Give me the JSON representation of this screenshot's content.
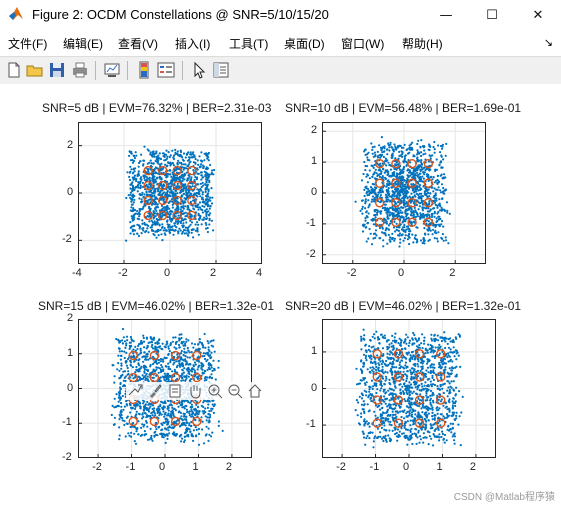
{
  "window": {
    "title": "Figure 2: OCDM Constellations @ SNR=5/10/15/20",
    "minimize_glyph": "—",
    "maximize_glyph": "☐",
    "close_glyph": "✕"
  },
  "menu": {
    "items": [
      "文件(F)",
      "编辑(E)",
      "查看(V)",
      "插入(I)",
      "工具(T)",
      "桌面(D)",
      "窗口(W)",
      "帮助(H)"
    ],
    "overflow_glyph": "↘"
  },
  "toolbar": {
    "icons": [
      "new-figure-icon",
      "open-file-icon",
      "save-icon",
      "print-icon",
      "link-plot-icon",
      "insert-colorbar-icon",
      "insert-legend-icon",
      "edit-plot-arrow-icon",
      "property-inspector-icon"
    ]
  },
  "colors": {
    "scatter": "#0072bd",
    "reference": "#d95319",
    "grid": "#e6e6e6",
    "axis": "#262626"
  },
  "chart_data": [
    {
      "type": "scatter",
      "title": "SNR=5 dB | EVM=76.32% | BER=2.31e-03",
      "xlim": [
        -4,
        4
      ],
      "ylim": [
        -3,
        3
      ],
      "xticks": [
        -4,
        -2,
        0,
        2,
        4
      ],
      "yticks": [
        -2,
        0,
        2
      ],
      "grid": true,
      "series": [
        {
          "marker": "dot",
          "spread": 0.72,
          "count": 1400,
          "box_half_width": 1.55
        },
        {
          "marker": "circle",
          "x": [
            -0.949,
            -0.316,
            0.316,
            0.949
          ],
          "y": [
            -0.949,
            -0.316,
            0.316,
            0.949
          ]
        }
      ]
    },
    {
      "type": "scatter",
      "title": "SNR=10 dB | EVM=56.48% | BER=1.69e-01",
      "xlim": [
        -3.2,
        3.2
      ],
      "ylim": [
        -2.3,
        2.3
      ],
      "xticks": [
        -2,
        0,
        2
      ],
      "yticks": [
        -2,
        -1,
        0,
        1,
        2
      ],
      "grid": true,
      "series": [
        {
          "marker": "dot",
          "spread": 0.48,
          "count": 1400,
          "box_half_width": 1.45
        },
        {
          "marker": "circle",
          "x": [
            -0.949,
            -0.316,
            0.316,
            0.949
          ],
          "y": [
            -0.949,
            -0.316,
            0.316,
            0.949
          ]
        }
      ]
    },
    {
      "type": "scatter",
      "title": "SNR=15 dB | EVM=46.02% | BER=1.32e-01",
      "xlim": [
        -2.6,
        2.6
      ],
      "ylim": [
        -2,
        2
      ],
      "xticks": [
        -2,
        -1,
        0,
        1,
        2
      ],
      "yticks": [
        -2,
        -1,
        0,
        1,
        2
      ],
      "grid": true,
      "series": [
        {
          "marker": "dot",
          "spread": 0.42,
          "count": 1400,
          "box_half_width": 1.3
        },
        {
          "marker": "circle",
          "x": [
            -0.949,
            -0.316,
            0.316,
            0.949
          ],
          "y": [
            -0.949,
            -0.316,
            0.316,
            0.949
          ]
        }
      ]
    },
    {
      "type": "scatter",
      "title": "SNR=20 dB | EVM=46.02% | BER=1.32e-01",
      "xlim": [
        -2.6,
        2.6
      ],
      "ylim": [
        -1.9,
        1.9
      ],
      "xticks": [
        -2,
        -1,
        0,
        1,
        2
      ],
      "yticks": [
        -1,
        0,
        1
      ],
      "grid": true,
      "series": [
        {
          "marker": "dot",
          "spread": 0.42,
          "count": 1400,
          "box_half_width": 1.3
        },
        {
          "marker": "circle",
          "x": [
            -0.949,
            -0.316,
            0.316,
            0.949
          ],
          "y": [
            -0.949,
            -0.316,
            0.316,
            0.949
          ]
        }
      ]
    }
  ],
  "axes_toolbar": {
    "icons": [
      "export-icon",
      "brush-icon",
      "data-tips-icon",
      "pan-icon",
      "zoom-in-icon",
      "zoom-out-icon",
      "home-icon"
    ]
  },
  "watermark": "CSDN @Matlab程序猿"
}
